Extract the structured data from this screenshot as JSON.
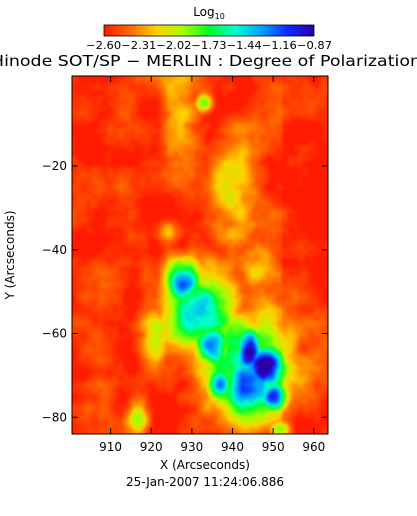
{
  "chart_data": {
    "type": "heatmap",
    "title": "Hinode SOT/SP − MERLIN : Degree of Polarization",
    "xlabel": "X (Arcseconds)",
    "ylabel": "Y (Arcseconds)",
    "timestamp": "25-Jan-2007 11:24:06.886",
    "xlim": [
      900.5,
      963.5
    ],
    "ylim": [
      -84,
      1.5
    ],
    "x_ticks": [
      910,
      920,
      930,
      940,
      950,
      960
    ],
    "x_tick_labels": [
      "910",
      "920",
      "930",
      "940",
      "950",
      "960"
    ],
    "y_ticks": [
      -20,
      -40,
      -60,
      -80
    ],
    "y_tick_labels": [
      "−20",
      "−40",
      "−60",
      "−80"
    ],
    "colorbar": {
      "title": "Log",
      "title_subscript": "10",
      "range": [
        -2.6,
        -0.87
      ],
      "tick_values": [
        -2.6,
        -2.31,
        -2.02,
        -1.73,
        -1.44,
        -1.16,
        -0.87
      ],
      "tick_labels": "−2.60−2.31−2.02−1.73−1.44−1.16−0.87",
      "colors": [
        "#ff1a00",
        "#ff6a00",
        "#ffd200",
        "#a8ff00",
        "#00ff2a",
        "#00ffd0",
        "#00a0ff",
        "#1028ff",
        "#2a00a8"
      ]
    },
    "background_level": -2.55,
    "features": [
      {
        "x": 933,
        "y": -55,
        "sx": 6.5,
        "sy": 7.5,
        "value": -1.55
      },
      {
        "x": 942,
        "y": -66,
        "sx": 8.5,
        "sy": 8.5,
        "value": -1.55
      },
      {
        "x": 944,
        "y": -72,
        "sx": 6.0,
        "sy": 6.0,
        "value": -1.25
      },
      {
        "x": 928,
        "y": -47,
        "sx": 3.0,
        "sy": 3.5,
        "value": -1.05
      },
      {
        "x": 935,
        "y": -63,
        "sx": 3.0,
        "sy": 3.5,
        "value": -0.95
      },
      {
        "x": 944,
        "y": -64,
        "sx": 2.5,
        "sy": 4.0,
        "value": -0.92
      },
      {
        "x": 948,
        "y": -68,
        "sx": 3.5,
        "sy": 4.0,
        "value": -0.9
      },
      {
        "x": 950,
        "y": -75,
        "sx": 2.5,
        "sy": 2.5,
        "value": -1.15
      },
      {
        "x": 937,
        "y": -72,
        "sx": 2.5,
        "sy": 3.0,
        "value": -1.2
      },
      {
        "x": 921,
        "y": -61,
        "sx": 2.5,
        "sy": 5.0,
        "value": -2.1
      },
      {
        "x": 917,
        "y": -80,
        "sx": 2.0,
        "sy": 3.5,
        "value": -1.9
      },
      {
        "x": 927,
        "y": -9,
        "sx": 3.5,
        "sy": 10.0,
        "value": -2.2
      },
      {
        "x": 940,
        "y": -28,
        "sx": 4.0,
        "sy": 10.0,
        "value": -2.15
      },
      {
        "x": 946,
        "y": -44,
        "sx": 3.5,
        "sy": 6.0,
        "value": -2.2
      },
      {
        "x": 933,
        "y": -5,
        "sx": 1.5,
        "sy": 1.5,
        "value": -1.75
      },
      {
        "x": 924,
        "y": -36,
        "sx": 2.0,
        "sy": 2.0,
        "value": -2.05
      },
      {
        "x": 952,
        "y": -83,
        "sx": 2.0,
        "sy": 1.5,
        "value": -1.9
      }
    ]
  }
}
